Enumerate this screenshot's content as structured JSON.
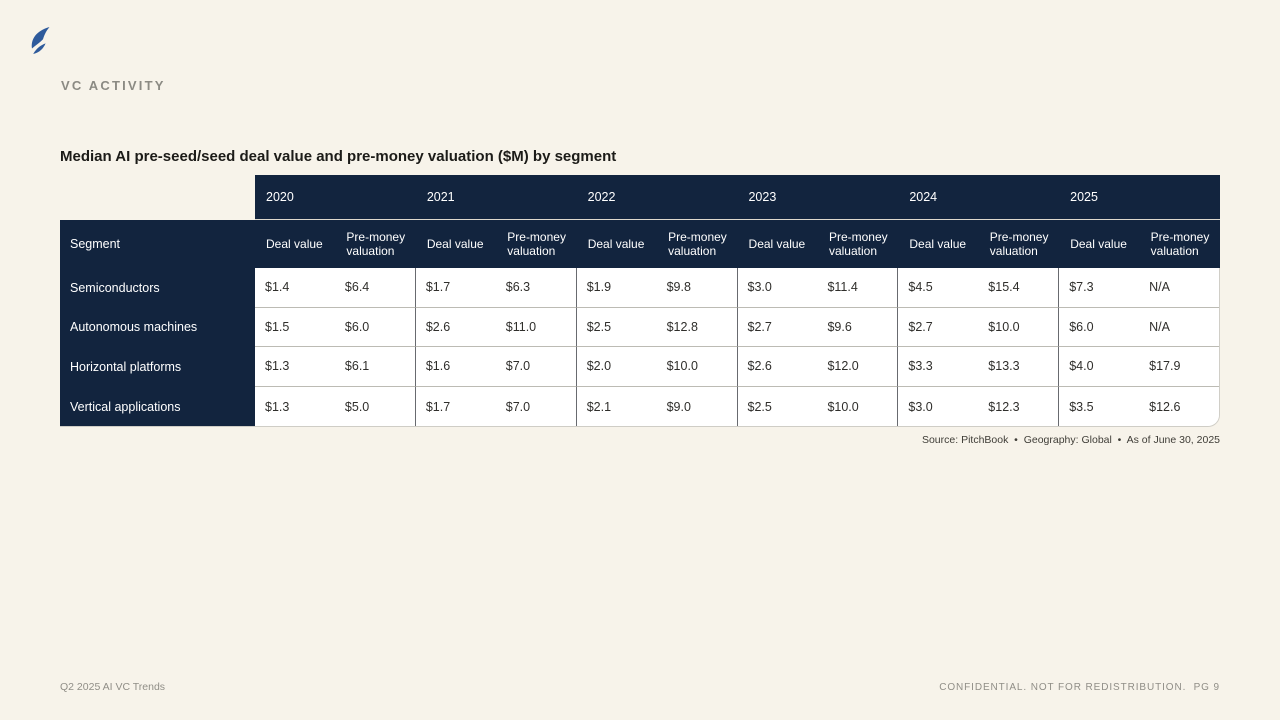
{
  "page": {
    "section_label": "VC ACTIVITY",
    "title": "Median AI pre-seed/seed deal value and pre-money valuation ($M) by segment",
    "source_note": "Source: PitchBook  •  Geography: Global  •  As of June 30, 2025",
    "footer_left": "Q2 2025 AI VC Trends",
    "footer_right": "CONFIDENTIAL. NOT FOR REDISTRIBUTION.  PG 9"
  },
  "logo": {
    "name": "pitchbook-mark",
    "color": "#2e5a9b"
  },
  "colors": {
    "background": "#f7f3ea",
    "navy_header": "#12243e",
    "row_border": "#bcbbb4",
    "year_group_border": "#686a6f",
    "accent_blue": "#2e5a9b"
  },
  "chart_data": {
    "type": "table",
    "title": "Median AI pre-seed/seed deal value and pre-money valuation ($M) by segment",
    "segment_header": "Segment",
    "years": [
      "2020",
      "2021",
      "2022",
      "2023",
      "2024",
      "2025"
    ],
    "subcolumns": [
      "Deal value",
      "Pre-money valuation"
    ],
    "rows": [
      {
        "segment": "Semiconductors",
        "values": [
          "$1.4",
          "$6.4",
          "$1.7",
          "$6.3",
          "$1.9",
          "$9.8",
          "$3.0",
          "$11.4",
          "$4.5",
          "$15.4",
          "$7.3",
          "N/A"
        ]
      },
      {
        "segment": "Autonomous machines",
        "values": [
          "$1.5",
          "$6.0",
          "$2.6",
          "$11.0",
          "$2.5",
          "$12.8",
          "$2.7",
          "$9.6",
          "$2.7",
          "$10.0",
          "$6.0",
          "N/A"
        ]
      },
      {
        "segment": "Horizontal platforms",
        "values": [
          "$1.3",
          "$6.1",
          "$1.6",
          "$7.0",
          "$2.0",
          "$10.0",
          "$2.6",
          "$12.0",
          "$3.3",
          "$13.3",
          "$4.0",
          "$17.9"
        ]
      },
      {
        "segment": "Vertical applications",
        "values": [
          "$1.3",
          "$5.0",
          "$1.7",
          "$7.0",
          "$2.1",
          "$9.0",
          "$2.5",
          "$10.0",
          "$3.0",
          "$12.3",
          "$3.5",
          "$12.6"
        ]
      }
    ],
    "source": "Source: PitchBook • Geography: Global • As of June 30, 2025"
  }
}
